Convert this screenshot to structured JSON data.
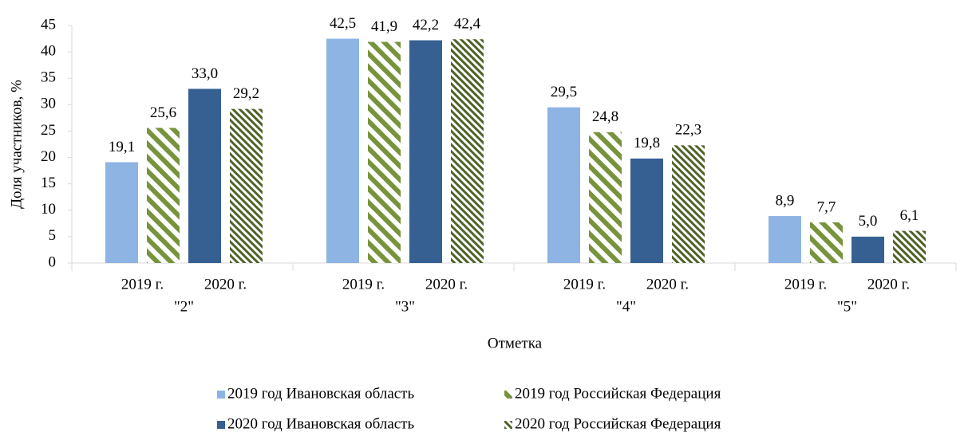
{
  "chart_data": {
    "type": "bar",
    "x_label": "Отметка",
    "y_label": "Доля участников, %",
    "categories": [
      "\"2\"",
      "\"3\"",
      "\"4\"",
      "\"5\""
    ],
    "subcategories": [
      "2019 г.",
      "2020 г."
    ],
    "series": [
      {
        "name": "2019 год Ивановская область",
        "color": "#8eb4e3",
        "values": [
          19.1,
          42.5,
          29.5,
          8.9
        ],
        "value_labels": [
          "19,1",
          "42,5",
          "29,5",
          "8,9"
        ]
      },
      {
        "name": "2019 год Российская Федерация",
        "color": "#77933c",
        "pattern": "wide-diagonal",
        "values": [
          25.6,
          41.9,
          24.8,
          7.7
        ],
        "value_labels": [
          "25,6",
          "41,9",
          "24,8",
          "7,7"
        ]
      },
      {
        "name": "2020 год Ивановская область",
        "color": "#366092",
        "values": [
          33.0,
          42.2,
          19.8,
          5.0
        ],
        "value_labels": [
          "33,0",
          "42,2",
          "19,8",
          "5,0"
        ]
      },
      {
        "name": "2020 год Российская Федерация",
        "color": "#4f6228",
        "pattern": "dense-diagonal",
        "values": [
          29.2,
          42.4,
          22.3,
          6.1
        ],
        "value_labels": [
          "29,2",
          "42,4",
          "22,3",
          "6,1"
        ]
      }
    ],
    "ylim": [
      0,
      45
    ],
    "yticks": [
      0,
      5,
      10,
      15,
      20,
      25,
      30,
      35,
      40,
      45
    ],
    "grid": false
  }
}
